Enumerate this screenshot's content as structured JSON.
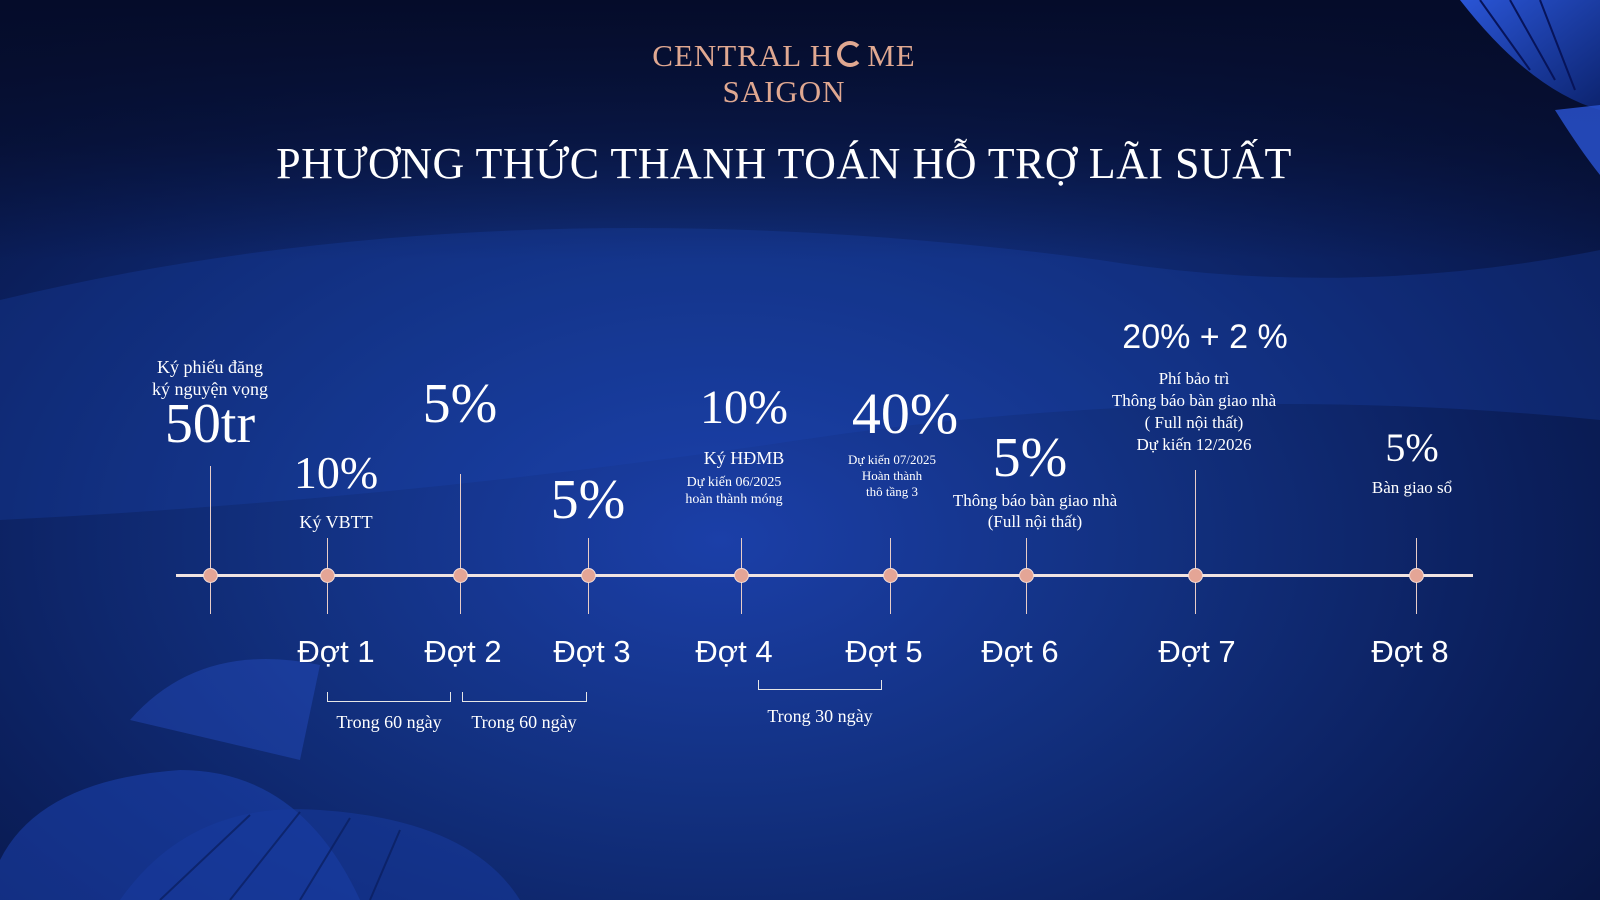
{
  "brand": {
    "line1_a": "CENTRAL H",
    "line1_b": "ME",
    "line2": "SAIGON",
    "accent_color": "#e0a891"
  },
  "title": "PHƯƠNG THỨC THANH TOÁN HỖ TRỢ LÃI SUẤT",
  "deposit": {
    "label_line1": "Ký phiếu đăng",
    "label_line2": "ký nguyện vọng",
    "amount": "50tr"
  },
  "installments": [
    {
      "label": "Đợt 1",
      "percent": "10%",
      "notes": [
        "Ký VBTT"
      ]
    },
    {
      "label": "Đợt 2",
      "percent": "5%",
      "notes": []
    },
    {
      "label": "Đợt 3",
      "percent": "5%",
      "notes": []
    },
    {
      "label": "Đợt 4",
      "percent": "10%",
      "notes": [
        "Ký HĐMB",
        "Dự kiến 06/2025",
        "hoàn thành móng"
      ]
    },
    {
      "label": "Đợt 5",
      "percent": "40%",
      "notes": [
        "Dự kiến 07/2025",
        "Hoàn thành",
        "thô tầng 3"
      ]
    },
    {
      "label": "Đợt 6",
      "percent": "5%",
      "notes": [
        "Thông báo bàn giao nhà",
        "(Full nội thất)"
      ]
    },
    {
      "label": "Đợt 7",
      "percent": "20% + 2 %",
      "notes": [
        "Phí bảo trì",
        "Thông báo bàn giao nhà",
        "( Full nội thất)",
        "Dự kiến 12/2026"
      ]
    },
    {
      "label": "Đợt 8",
      "percent": "5%",
      "notes": [
        "Bàn giao sổ"
      ]
    }
  ],
  "intervals": [
    {
      "label": "Trong 60 ngày"
    },
    {
      "label": "Trong 60 ngày"
    },
    {
      "label": "Trong 30 ngày"
    }
  ]
}
